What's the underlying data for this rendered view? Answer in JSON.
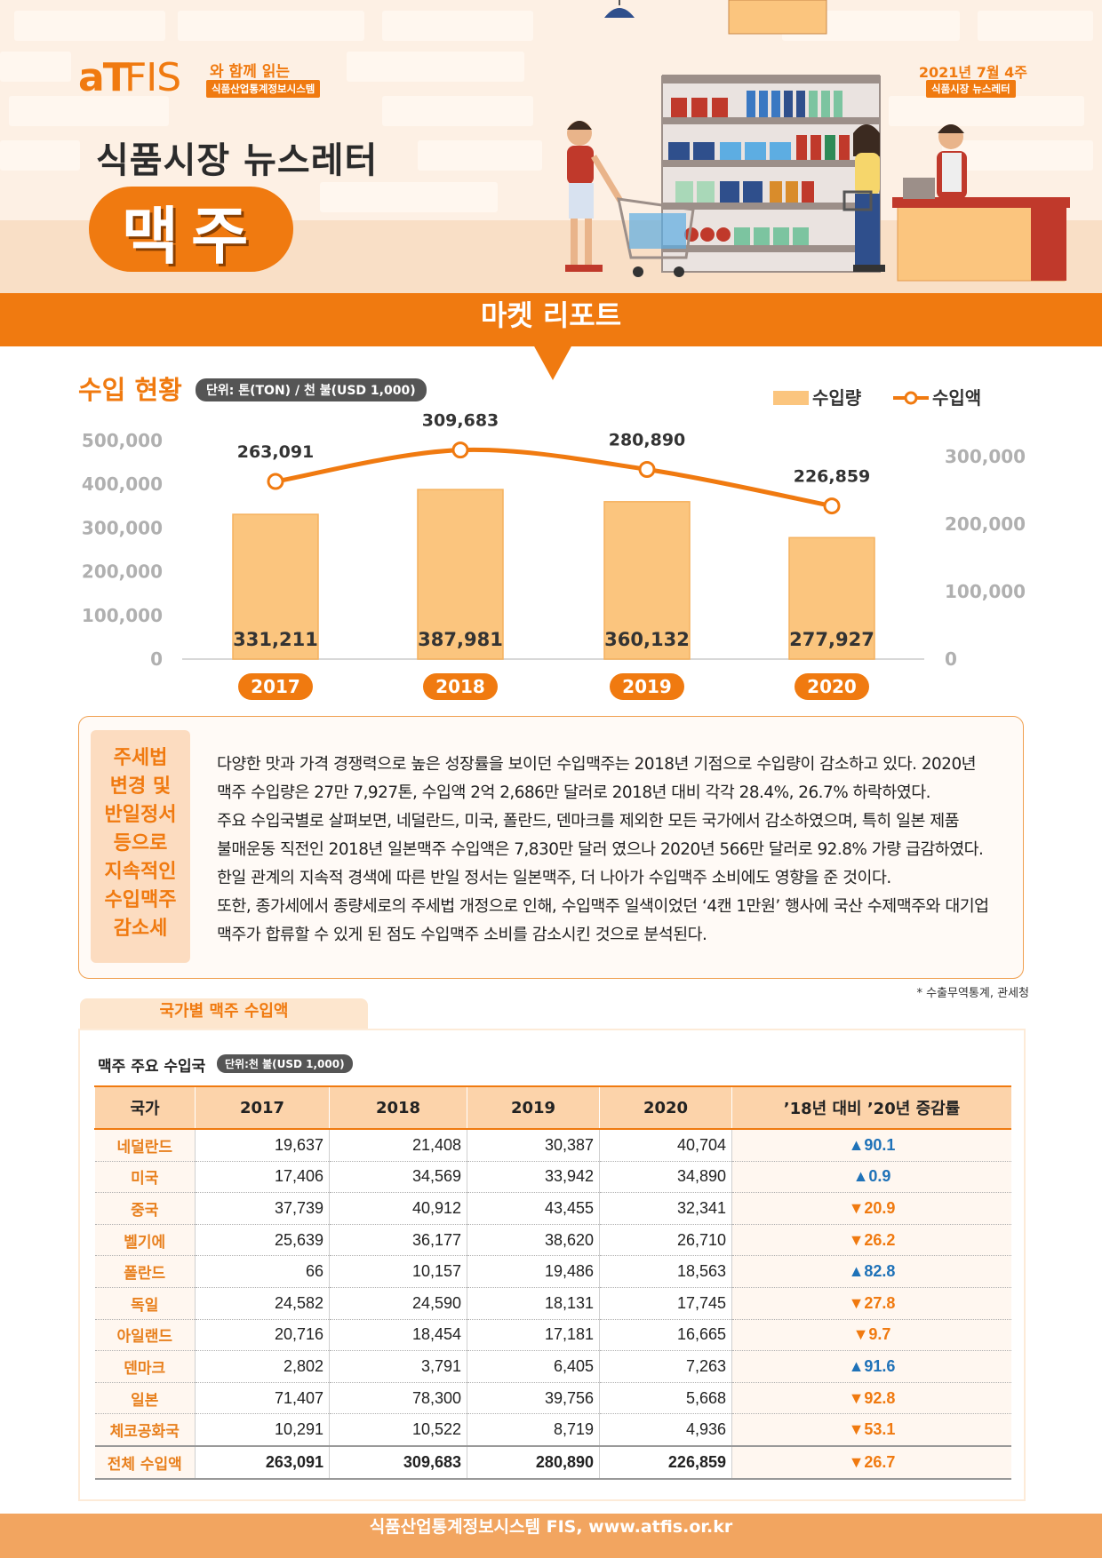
{
  "header": {
    "logo": "aTFIS",
    "logo_prefix": "aT",
    "logo_suffix": "FIS",
    "tagline": "와 함께 읽는",
    "system_name": "식품산업통계정보시스템",
    "issue_date": "2021년 7월 4주",
    "issue_label": "식품시장 뉴스레터",
    "newsletter_title": "식품시장 뉴스레터",
    "product": "맥주"
  },
  "banner": {
    "title": "마켓 리포트"
  },
  "section": {
    "title": "수입 현황",
    "unit": "단위: 톤(TON) / 천 불(USD 1,000)"
  },
  "chart_data": {
    "type": "bar",
    "categories": [
      "2017",
      "2018",
      "2019",
      "2020"
    ],
    "series": [
      {
        "name": "수입량",
        "type": "bar",
        "axis": "left",
        "values": [
          331211,
          387981,
          360132,
          277927
        ],
        "labels": [
          "331,211",
          "387,981",
          "360,132",
          "277,927"
        ]
      },
      {
        "name": "수입액",
        "type": "line",
        "axis": "right",
        "values": [
          263091,
          309683,
          280890,
          226859
        ],
        "labels": [
          "263,091",
          "309,683",
          "280,890",
          "226,859"
        ]
      }
    ],
    "left_axis": {
      "ylim": [
        0,
        500000
      ],
      "ticks": [
        "0",
        "100,000",
        "200,000",
        "300,000",
        "400,000",
        "500,000"
      ]
    },
    "right_axis": {
      "ylim": [
        0,
        300000
      ],
      "ticks": [
        "0",
        "100,000",
        "200,000",
        "300,000"
      ]
    },
    "legend_position": "top-right",
    "colors": {
      "bar": "#fbc57e",
      "bar_edge": "#f5b15e",
      "line": "#f07a10",
      "pill": "#f07a10"
    }
  },
  "note": {
    "title": [
      "주세법",
      "변경 및",
      "반일정서",
      "등으로",
      "지속적인",
      "수입맥주",
      "감소세"
    ],
    "lines": [
      "다양한 맛과 가격 경쟁력으로 높은 성장률을 보이던 수입맥주는 2018년 기점으로 수입량이 감소하고 있다. 2020년",
      "맥주 수입량은 27만 7,927톤, 수입액 2억 2,686만 달러로 2018년 대비 각각 28.4%, 26.7% 하락하였다.",
      "주요 수입국별로 살펴보면, 네덜란드, 미국, 폴란드, 덴마크를 제외한 모든 국가에서 감소하였으며, 특히 일본 제품",
      "불매운동 직전인 2018년 일본맥주 수입액은 7,830만 달러 였으나 2020년 566만 달러로 92.8% 가량 급감하였다.",
      "한일 관계의 지속적 경색에 따른 반일 정서는 일본맥주, 더 나아가 수입맥주 소비에도 영향을 준 것이다.",
      "또한, 종가세에서 종량세로의 주세법 개정으로 인해, 수입맥주 일색이었던 ‘4캔 1만원’ 행사에 국산 수제맥주와 대기업",
      "맥주가 합류할 수 있게 된 점도 수입맥주 소비를 감소시킨 것으로 분석된다."
    ]
  },
  "source": "* 수출무역통계, 관세청",
  "table": {
    "tab_title": "국가별 맥주 수입액",
    "caption": "맥주 주요 수입국",
    "unit": "단위:천 불(USD 1,000)",
    "headers": [
      "국가",
      "2017",
      "2018",
      "2019",
      "2020",
      "’18년 대비 ’20년 증감률"
    ],
    "rows": [
      {
        "country": "네덜란드",
        "v2017": "19,637",
        "v2018": "21,408",
        "v2019": "30,387",
        "v2020": "40,704",
        "change": "▲90.1",
        "dir": "up"
      },
      {
        "country": "미국",
        "v2017": "17,406",
        "v2018": "34,569",
        "v2019": "33,942",
        "v2020": "34,890",
        "change": "▲0.9",
        "dir": "up"
      },
      {
        "country": "중국",
        "v2017": "37,739",
        "v2018": "40,912",
        "v2019": "43,455",
        "v2020": "32,341",
        "change": "▼20.9",
        "dir": "dn"
      },
      {
        "country": "벨기에",
        "v2017": "25,639",
        "v2018": "36,177",
        "v2019": "38,620",
        "v2020": "26,710",
        "change": "▼26.2",
        "dir": "dn"
      },
      {
        "country": "폴란드",
        "v2017": "66",
        "v2018": "10,157",
        "v2019": "19,486",
        "v2020": "18,563",
        "change": "▲82.8",
        "dir": "up"
      },
      {
        "country": "독일",
        "v2017": "24,582",
        "v2018": "24,590",
        "v2019": "18,131",
        "v2020": "17,745",
        "change": "▼27.8",
        "dir": "dn"
      },
      {
        "country": "아일랜드",
        "v2017": "20,716",
        "v2018": "18,454",
        "v2019": "17,181",
        "v2020": "16,665",
        "change": "▼9.7",
        "dir": "dn"
      },
      {
        "country": "덴마크",
        "v2017": "2,802",
        "v2018": "3,791",
        "v2019": "6,405",
        "v2020": "7,263",
        "change": "▲91.6",
        "dir": "up"
      },
      {
        "country": "일본",
        "v2017": "71,407",
        "v2018": "78,300",
        "v2019": "39,756",
        "v2020": "5,668",
        "change": "▼92.8",
        "dir": "dn"
      },
      {
        "country": "체코공화국",
        "v2017": "10,291",
        "v2018": "10,522",
        "v2019": "8,719",
        "v2020": "4,936",
        "change": "▼53.1",
        "dir": "dn"
      }
    ],
    "total": {
      "country": "전체 수입액",
      "v2017": "263,091",
      "v2018": "309,683",
      "v2019": "280,890",
      "v2020": "226,859",
      "change": "▼26.7",
      "dir": "dn"
    }
  },
  "footer": {
    "text": "식품산업통계정보시스템 FIS, www.atfis.or.kr"
  }
}
